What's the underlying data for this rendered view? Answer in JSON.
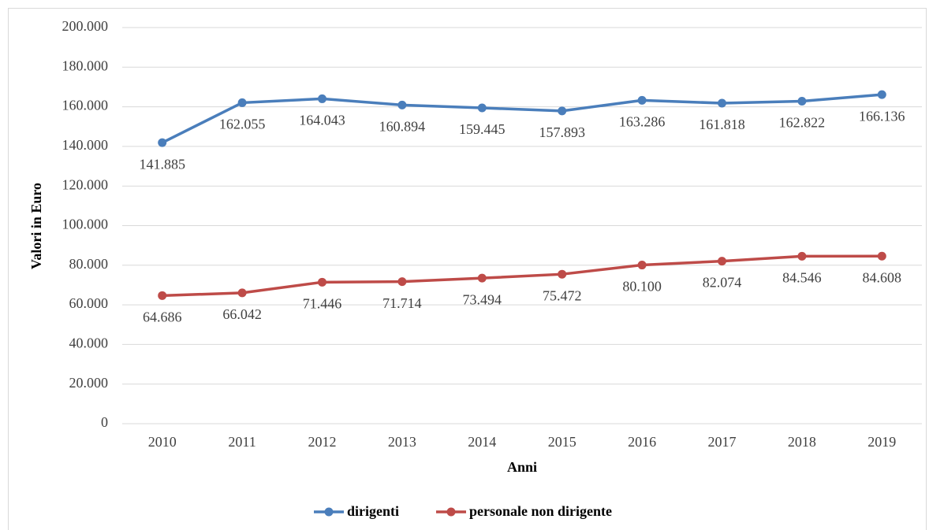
{
  "chart_data": {
    "type": "line",
    "x_label": "Anni",
    "y_label": "Valori in Euro",
    "categories": [
      "2010",
      "2011",
      "2012",
      "2013",
      "2014",
      "2015",
      "2016",
      "2017",
      "2018",
      "2019"
    ],
    "series": [
      {
        "name": "dirigenti",
        "color": "#4a7ebb",
        "values": [
          141885,
          162055,
          164043,
          160894,
          159445,
          157893,
          163286,
          161818,
          162822,
          166136
        ],
        "value_labels": [
          "141.885",
          "162.055",
          "164.043",
          "160.894",
          "159.445",
          "157.893",
          "163.286",
          "161.818",
          "162.822",
          "166.136"
        ]
      },
      {
        "name": "personale non dirigente",
        "color": "#be4b48",
        "values": [
          64686,
          66042,
          71446,
          71714,
          73494,
          75472,
          80100,
          82074,
          84546,
          84608
        ],
        "value_labels": [
          "64.686",
          "66.042",
          "71.446",
          "71.714",
          "73.494",
          "75.472",
          "80.100",
          "82.074",
          "84.546",
          "84.608"
        ]
      }
    ],
    "ylim": [
      0,
      200000
    ],
    "yticks": [
      0,
      {
        "value": 20000,
        "label": "20.000"
      },
      {
        "value": 40000,
        "label": "40.000"
      },
      {
        "value": 60000,
        "label": "60.000"
      },
      {
        "value": 80000,
        "label": "80.000"
      },
      {
        "value": 100000,
        "label": "100.000"
      },
      {
        "value": 120000,
        "label": "120.000"
      },
      {
        "value": 140000,
        "label": "140.000"
      },
      {
        "value": 160000,
        "label": "160.000"
      },
      {
        "value": 180000,
        "label": "180.000"
      },
      {
        "value": 200000,
        "label": "200.000"
      }
    ],
    "grid": true,
    "legend": "bottom"
  }
}
